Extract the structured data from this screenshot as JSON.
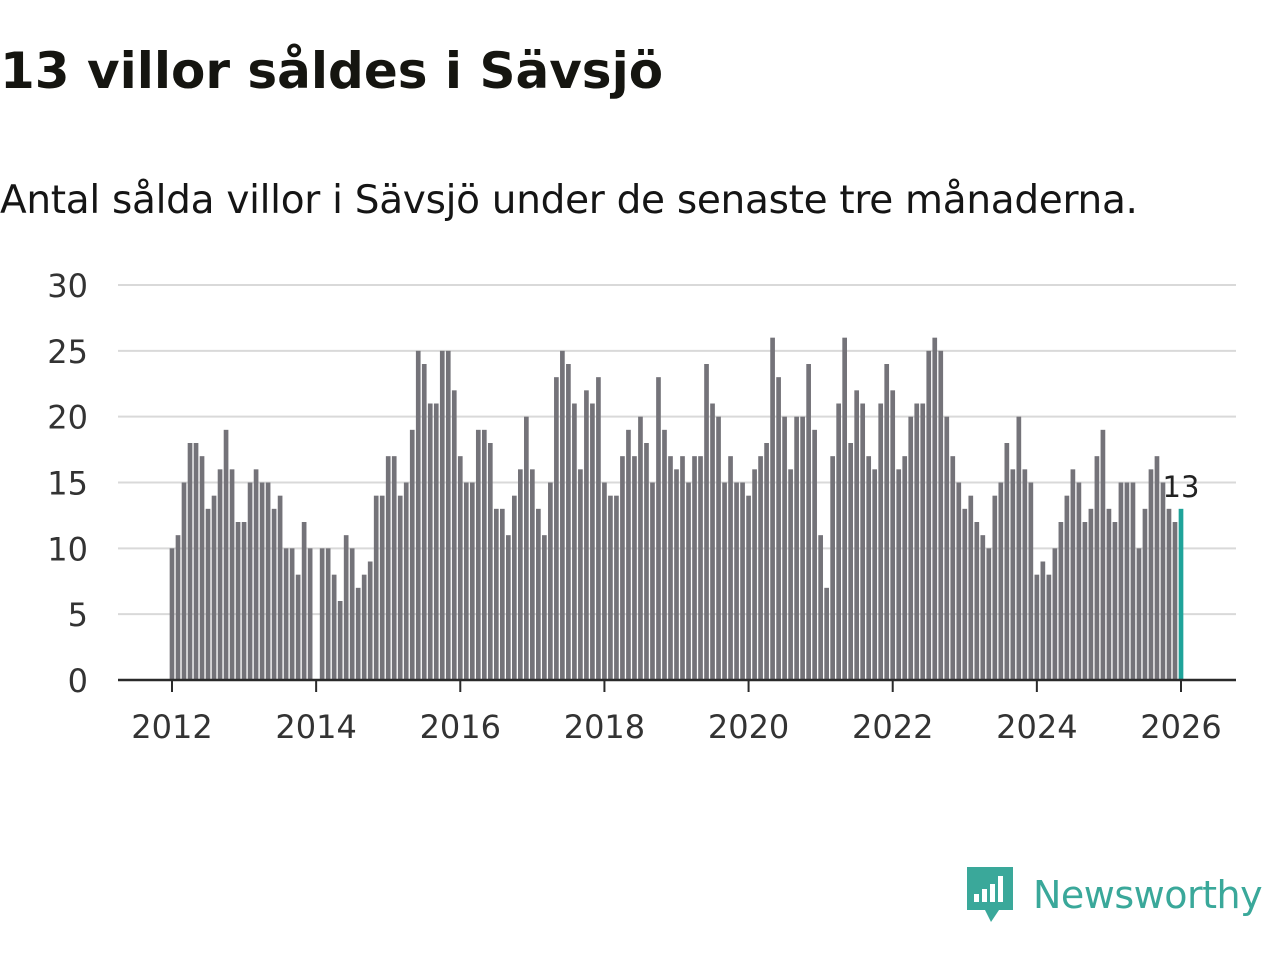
{
  "title": "13 villor såldes i Sävsjö",
  "subtitle": "Antal sålda villor i Sävsjö under de senaste tre månaderna.",
  "brand": {
    "name": "Newsworthy",
    "icon": "newsworthy-logo-icon"
  },
  "colors": {
    "bar": "#747379",
    "highlight": "#1fa39a",
    "grid": "#d9d9d9",
    "axis": "#2a2a2a",
    "brand": "#3aa89a"
  },
  "chart_data": {
    "type": "bar",
    "title": "13 villor såldes i Sävsjö",
    "xlabel": "",
    "ylabel": "",
    "ylim": [
      0,
      30
    ],
    "yticks": [
      0,
      5,
      10,
      15,
      20,
      25,
      30
    ],
    "xticks": [
      "2012",
      "2014",
      "2016",
      "2018",
      "2020",
      "2022",
      "2024",
      "2026"
    ],
    "x_start": "2012-01",
    "x_end": "2026-01",
    "grid": true,
    "highlight_label": "13",
    "values": [
      10,
      11,
      15,
      18,
      18,
      17,
      13,
      14,
      16,
      19,
      16,
      12,
      12,
      15,
      16,
      15,
      15,
      13,
      14,
      10,
      10,
      8,
      12,
      10,
      0,
      10,
      10,
      8,
      6,
      11,
      10,
      7,
      8,
      9,
      14,
      14,
      17,
      17,
      14,
      15,
      19,
      25,
      24,
      21,
      21,
      25,
      25,
      22,
      17,
      15,
      15,
      19,
      19,
      18,
      13,
      13,
      11,
      14,
      16,
      20,
      16,
      13,
      11,
      15,
      23,
      25,
      24,
      21,
      16,
      22,
      21,
      23,
      15,
      14,
      14,
      17,
      19,
      17,
      20,
      18,
      15,
      23,
      19,
      17,
      16,
      17,
      15,
      17,
      17,
      24,
      21,
      20,
      15,
      17,
      15,
      15,
      14,
      16,
      17,
      18,
      26,
      23,
      20,
      16,
      20,
      20,
      24,
      19,
      11,
      7,
      17,
      21,
      26,
      18,
      22,
      21,
      17,
      16,
      21,
      24,
      22,
      16,
      17,
      20,
      21,
      21,
      25,
      26,
      25,
      20,
      17,
      15,
      13,
      14,
      12,
      11,
      10,
      14,
      15,
      18,
      16,
      20,
      16,
      15,
      8,
      9,
      8,
      10,
      12,
      14,
      16,
      15,
      12,
      13,
      17,
      19,
      13,
      12,
      15,
      15,
      15,
      10,
      13,
      16,
      17,
      15,
      13,
      12,
      13
    ]
  }
}
